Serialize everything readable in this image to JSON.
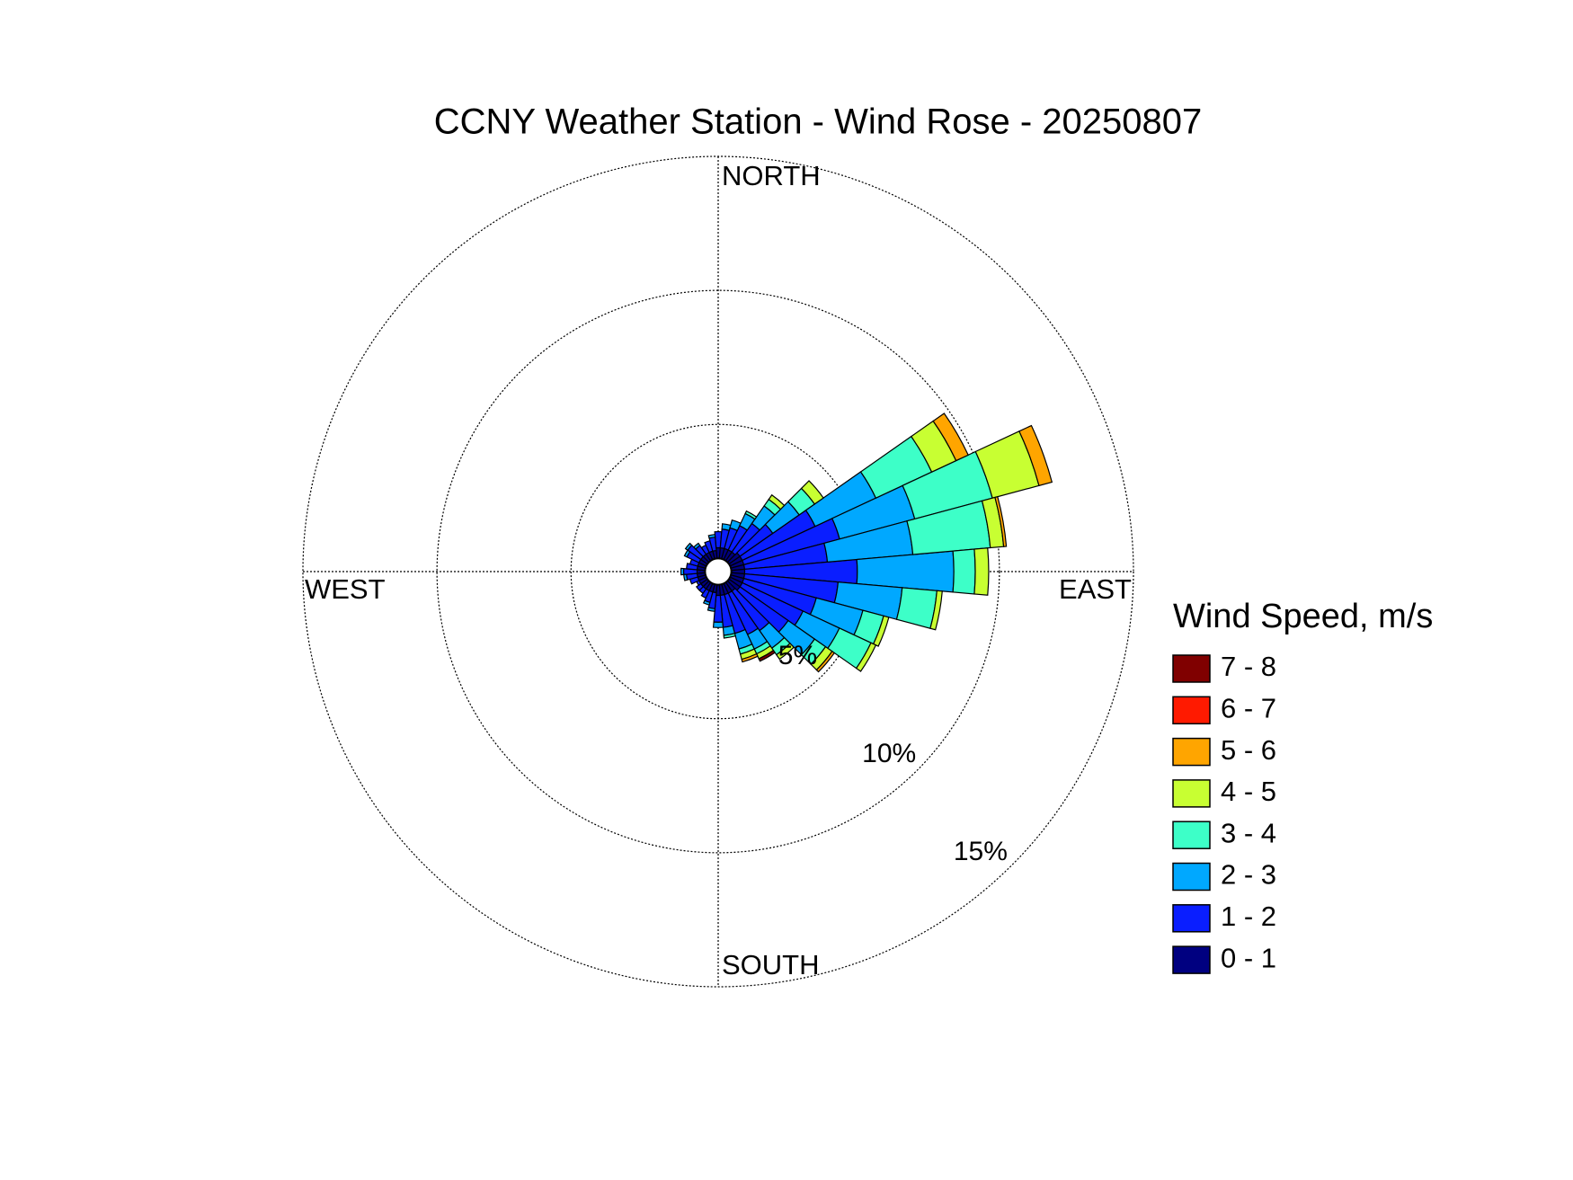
{
  "chart_data": {
    "type": "windrose",
    "title": "CCNY Weather Station - Wind Rose - 20250807",
    "legend_title": "Wind Speed, m/s",
    "direction_labels": {
      "north": "NORTH",
      "east": "EAST",
      "south": "SOUTH",
      "west": "WEST"
    },
    "directions": [
      0,
      10,
      20,
      30,
      40,
      50,
      60,
      70,
      80,
      90,
      100,
      110,
      120,
      130,
      140,
      150,
      160,
      170,
      180,
      190,
      200,
      210,
      220,
      230,
      240,
      250,
      260,
      270,
      280,
      290,
      300,
      310,
      320,
      330,
      340,
      350
    ],
    "rlim": [
      0,
      15
    ],
    "rticks": [
      {
        "value": 5,
        "label": "5%"
      },
      {
        "value": 10,
        "label": "10%"
      },
      {
        "value": 15,
        "label": "15%"
      }
    ],
    "grid": true,
    "series": [
      {
        "name": "0 - 1",
        "color": "#000080",
        "values": [
          0.4,
          0.4,
          0.4,
          0.4,
          0.4,
          0.5,
          0.5,
          0.5,
          0.5,
          0.5,
          0.5,
          0.5,
          0.5,
          0.5,
          0.4,
          0.4,
          0.4,
          0.4,
          0.4,
          0.3,
          0.3,
          0.3,
          0.3,
          0.3,
          0.3,
          0.3,
          0.3,
          0.3,
          0.3,
          0.3,
          0.3,
          0.3,
          0.3,
          0.3,
          0.3,
          0.3
        ]
      },
      {
        "name": "1 - 2",
        "color": "#0a1eff",
        "values": [
          0.6,
          0.7,
          0.8,
          1.0,
          1.3,
          1.5,
          3.0,
          3.7,
          3.1,
          4.2,
          3.5,
          2.8,
          2.5,
          2.2,
          1.8,
          1.7,
          1.5,
          1.2,
          1.0,
          0.6,
          0.4,
          0.3,
          0.2,
          0.2,
          0.1,
          0.3,
          0.4,
          0.5,
          0.4,
          0.3,
          0.5,
          0.6,
          0.4,
          0.3,
          0.4,
          0.5
        ]
      },
      {
        "name": "2 - 3",
        "color": "#00a8ff",
        "values": [
          0,
          0.2,
          0.3,
          0.5,
          0.8,
          1.2,
          2.5,
          2.9,
          3.2,
          3.6,
          2.4,
          1.8,
          1.5,
          1.2,
          0.8,
          0.6,
          0.6,
          0.3,
          0.2,
          0.1,
          0.1,
          0,
          0,
          0,
          0,
          0,
          0.1,
          0.1,
          0,
          0,
          0.1,
          0.1,
          0.1,
          0,
          0,
          0.1
        ]
      },
      {
        "name": "3 - 4",
        "color": "#3dffc8",
        "values": [
          0,
          0,
          0,
          0.1,
          0.3,
          0.7,
          2.3,
          3.0,
          2.9,
          0.8,
          1.3,
          0.8,
          1.3,
          0.5,
          0.3,
          0.2,
          0.2,
          0.1,
          0,
          0,
          0,
          0,
          0,
          0,
          0,
          0,
          0,
          0,
          0,
          0,
          0,
          0,
          0,
          0,
          0,
          0
        ]
      },
      {
        "name": "4 - 5",
        "color": "#c8ff32",
        "values": [
          0,
          0,
          0,
          0,
          0.2,
          0.4,
          1.0,
          1.8,
          0.5,
          0.5,
          0.2,
          0.2,
          0.2,
          0.3,
          0.2,
          0.2,
          0.2,
          0,
          0,
          0,
          0,
          0,
          0,
          0,
          0,
          0,
          0,
          0,
          0,
          0,
          0,
          0,
          0,
          0,
          0,
          0
        ]
      },
      {
        "name": "5 - 6",
        "color": "#ffa500",
        "values": [
          0,
          0,
          0,
          0,
          0,
          0,
          0.5,
          0.5,
          0.1,
          0,
          0,
          0,
          0,
          0.1,
          0,
          0,
          0.1,
          0,
          0,
          0,
          0,
          0,
          0,
          0,
          0,
          0,
          0,
          0,
          0,
          0,
          0,
          0,
          0,
          0,
          0,
          0
        ]
      },
      {
        "name": "6 - 7",
        "color": "#ff1a00",
        "values": [
          0,
          0,
          0,
          0,
          0,
          0,
          0,
          0,
          0,
          0,
          0,
          0,
          0,
          0,
          0,
          0,
          0,
          0,
          0,
          0,
          0,
          0,
          0,
          0,
          0,
          0,
          0,
          0,
          0,
          0,
          0,
          0,
          0,
          0,
          0,
          0
        ]
      },
      {
        "name": "7 - 8",
        "color": "#800000",
        "values": [
          0,
          0,
          0,
          0,
          0,
          0,
          0,
          0,
          0,
          0,
          0,
          0,
          0,
          0,
          0,
          0.1,
          0,
          0,
          0,
          0,
          0,
          0,
          0,
          0,
          0,
          0,
          0,
          0,
          0,
          0,
          0,
          0,
          0,
          0,
          0
        ]
      }
    ]
  }
}
